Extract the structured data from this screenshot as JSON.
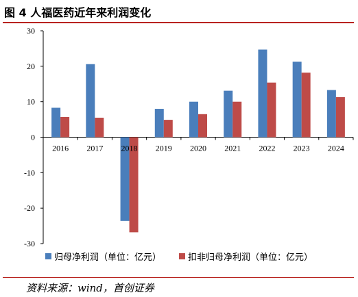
{
  "title": "图 4  人福医药近年来利润变化",
  "source": "资料来源：wind，首创证券",
  "colors": {
    "series1": "#4a7ebb",
    "series2": "#be4b48",
    "rule": "#b8231f"
  },
  "chart_data": {
    "type": "bar",
    "categories": [
      "2016",
      "2017",
      "2018",
      "2019",
      "2020",
      "2021",
      "2022",
      "2023",
      "2024"
    ],
    "series": [
      {
        "name": "归母净利润（单位：亿元）",
        "values": [
          8.3,
          20.6,
          -23.6,
          8.0,
          10.0,
          13.1,
          24.7,
          21.3,
          13.3
        ]
      },
      {
        "name": "扣非归母净利润（单位：亿元）",
        "values": [
          5.7,
          5.5,
          -26.8,
          4.9,
          6.5,
          10.0,
          15.4,
          18.2,
          11.3
        ]
      }
    ],
    "ylim": [
      -30,
      30
    ],
    "yticks": [
      30,
      20,
      10,
      0,
      -10,
      -20,
      -30
    ],
    "ytick_labels": [
      "30",
      "20",
      "10",
      "0",
      "-10",
      "-20",
      "-30"
    ],
    "legend_position": "bottom",
    "grid": false
  }
}
